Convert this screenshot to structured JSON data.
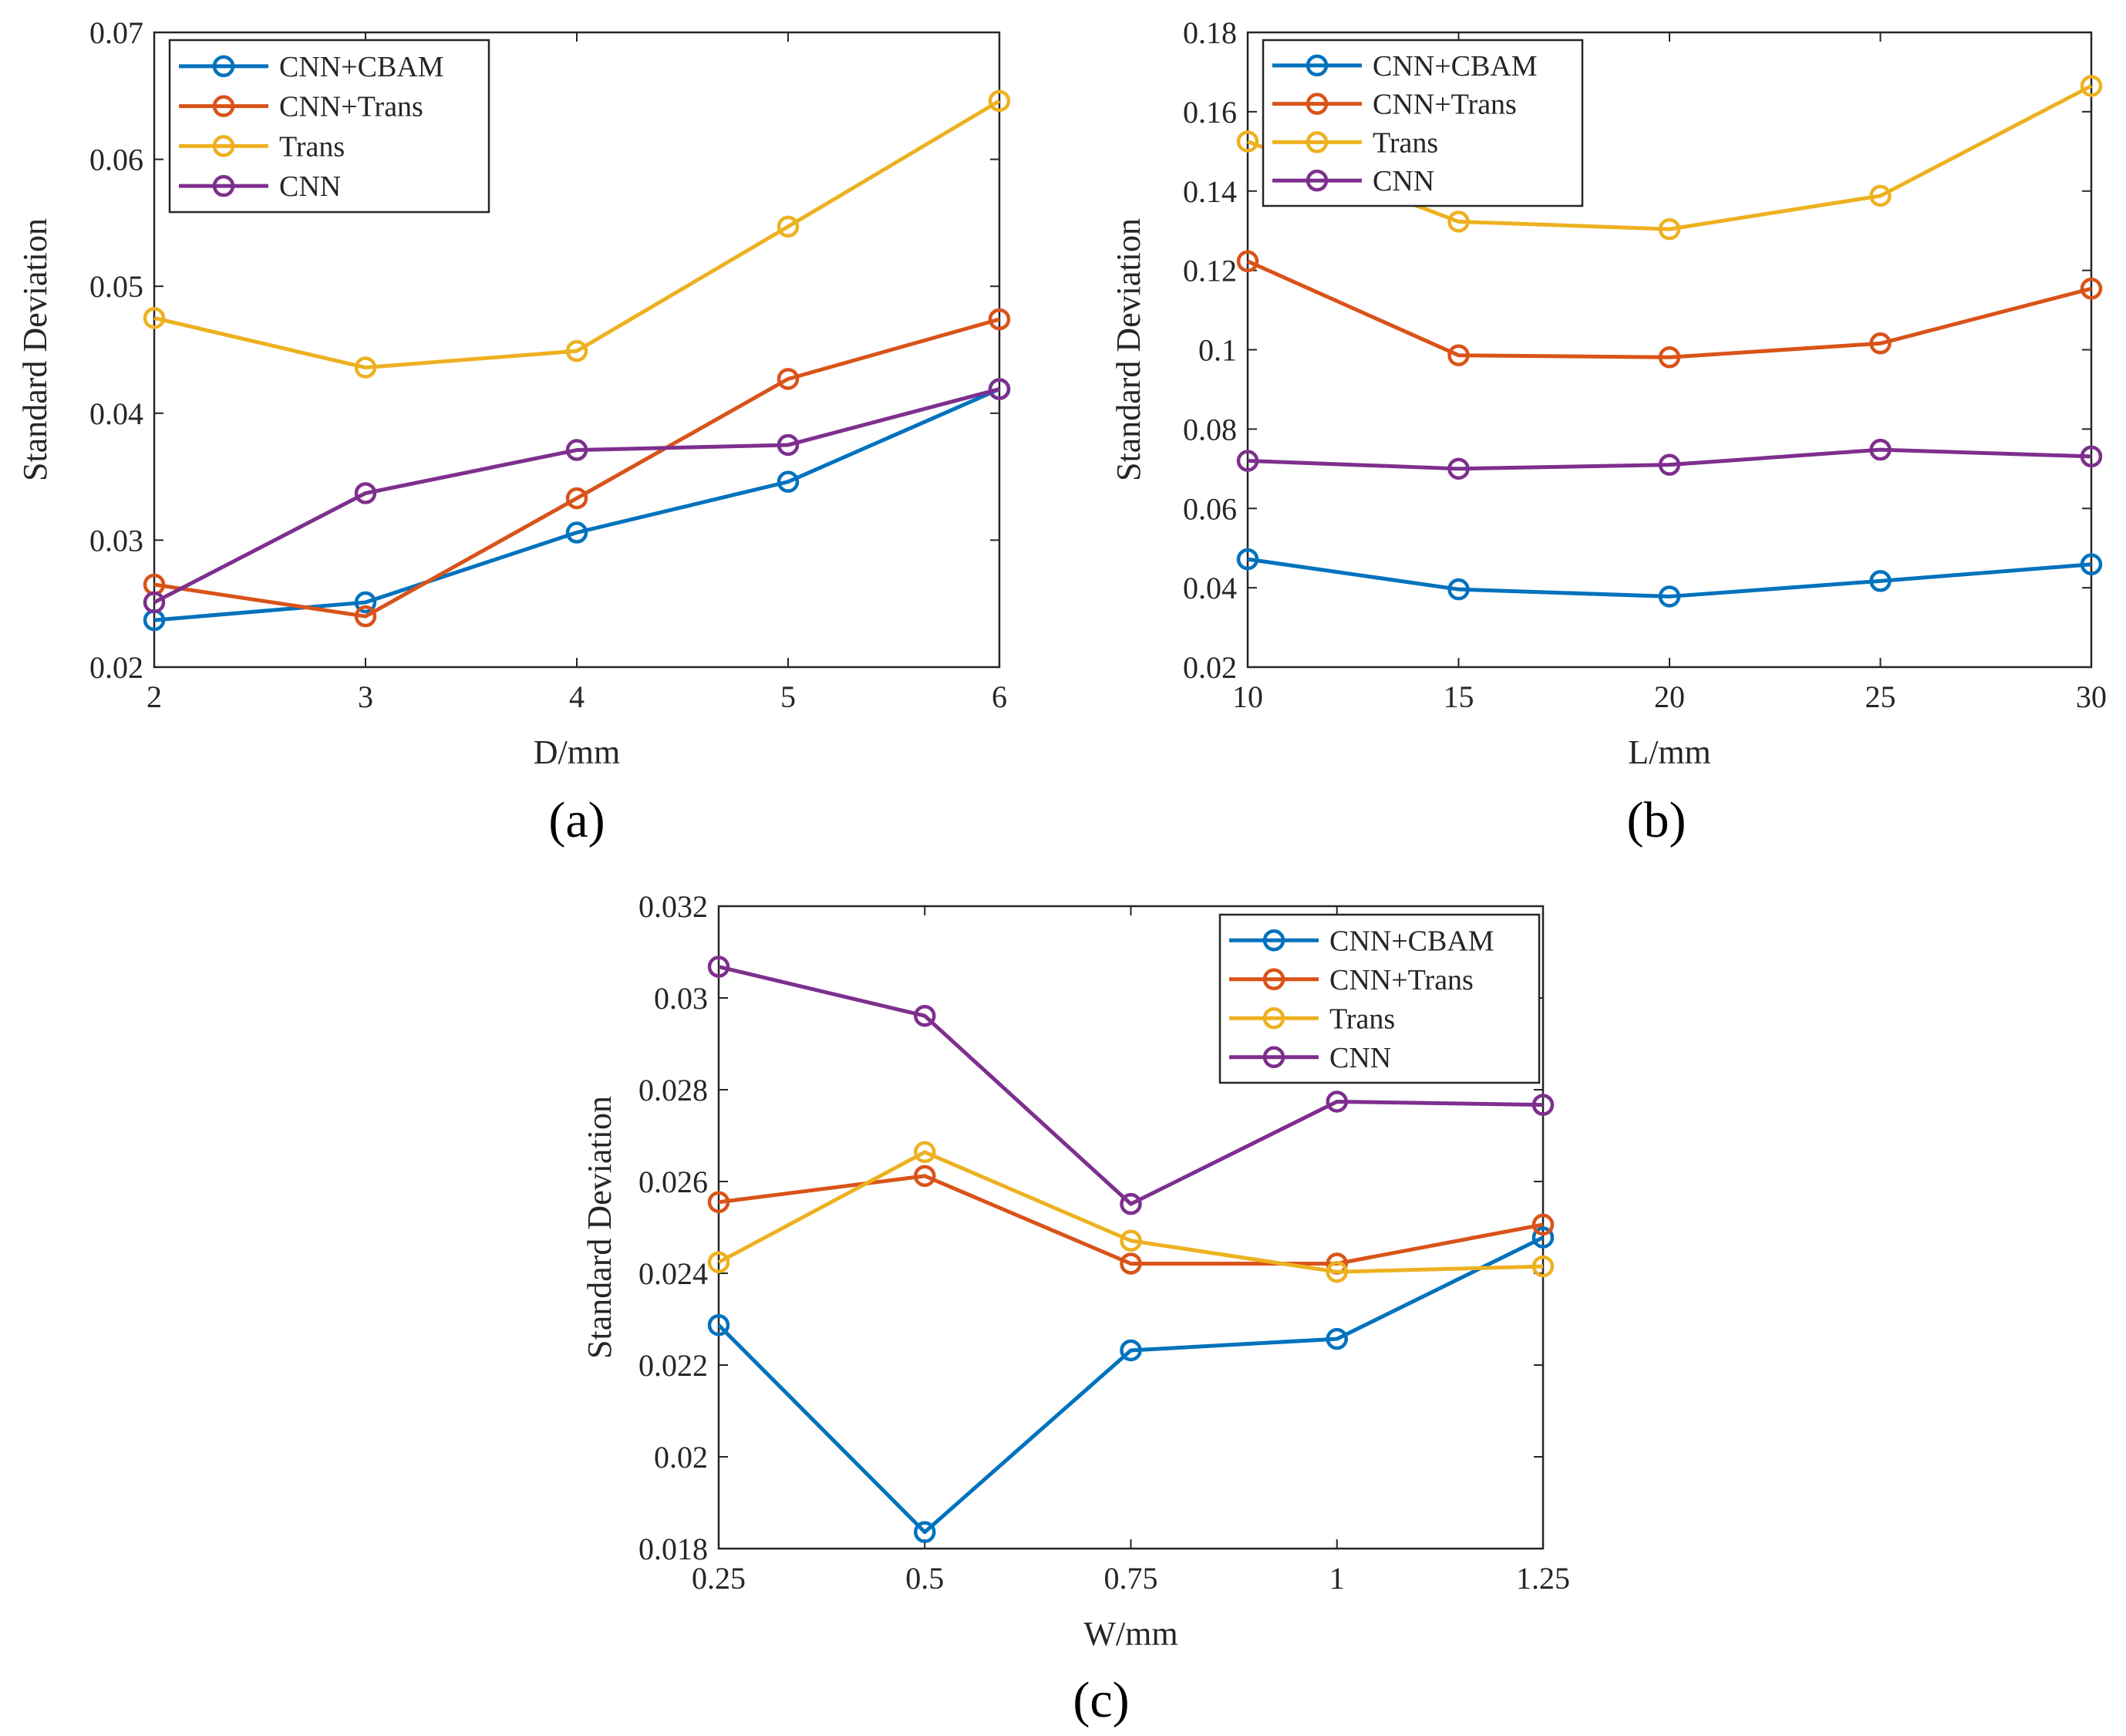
{
  "colors": {
    "cnn_cbam": "#0072BD",
    "cnn_trans": "#D95319",
    "trans": "#EDB120",
    "cnn": "#7E2F8E"
  },
  "chart_data": [
    {
      "type": "line",
      "panel_label": "(a)",
      "xlabel": "D/mm",
      "ylabel": "Standard Deviation",
      "x": [
        2,
        3,
        4,
        5,
        6
      ],
      "x_tick_labels": [
        "2",
        "3",
        "4",
        "5",
        "6"
      ],
      "xlim": [
        2,
        6
      ],
      "ylim": [
        0.02,
        0.07
      ],
      "y_ticks": [
        0.02,
        0.03,
        0.04,
        0.05,
        0.06,
        0.07
      ],
      "y_tick_labels": [
        "0.02",
        "0.03",
        "0.04",
        "0.05",
        "0.06",
        "0.07"
      ],
      "legend_position": "top-left",
      "series": [
        {
          "name": "CNN+CBAM",
          "color_key": "cnn_cbam",
          "values": [
            0.0237,
            0.0251,
            0.0306,
            0.0346,
            0.0419
          ]
        },
        {
          "name": "CNN+Trans",
          "color_key": "cnn_trans",
          "values": [
            0.0265,
            0.024,
            0.0333,
            0.0427,
            0.0474
          ]
        },
        {
          "name": "Trans",
          "color_key": "trans",
          "values": [
            0.0475,
            0.0436,
            0.0449,
            0.0547,
            0.0646
          ]
        },
        {
          "name": "CNN",
          "color_key": "cnn",
          "values": [
            0.0251,
            0.0337,
            0.0371,
            0.0375,
            0.0419
          ]
        }
      ]
    },
    {
      "type": "line",
      "panel_label": "(b)",
      "xlabel": "L/mm",
      "ylabel": "Standard Deviation",
      "x": [
        10,
        15,
        20,
        25,
        30
      ],
      "x_tick_labels": [
        "10",
        "15",
        "20",
        "25",
        "30"
      ],
      "xlim": [
        10,
        30
      ],
      "ylim": [
        0.02,
        0.18
      ],
      "y_ticks": [
        0.02,
        0.04,
        0.06,
        0.08,
        0.1,
        0.12,
        0.14,
        0.16,
        0.18
      ],
      "y_tick_labels": [
        "0.02",
        "0.04",
        "0.06",
        "0.08",
        "0.1",
        "0.12",
        "0.14",
        "0.16",
        "0.18"
      ],
      "legend_position": "top-left",
      "series": [
        {
          "name": "CNN+CBAM",
          "color_key": "cnn_cbam",
          "values": [
            0.0472,
            0.0396,
            0.0378,
            0.0417,
            0.0459
          ]
        },
        {
          "name": "CNN+Trans",
          "color_key": "cnn_trans",
          "values": [
            0.1223,
            0.0986,
            0.0981,
            0.1016,
            0.1154
          ]
        },
        {
          "name": "Trans",
          "color_key": "trans",
          "values": [
            0.1525,
            0.1323,
            0.1304,
            0.1388,
            0.1665
          ]
        },
        {
          "name": "CNN",
          "color_key": "cnn",
          "values": [
            0.072,
            0.07,
            0.071,
            0.0748,
            0.0731
          ]
        }
      ]
    },
    {
      "type": "line",
      "panel_label": "(c)",
      "xlabel": "W/mm",
      "ylabel": "Standard Deviation",
      "x": [
        0.25,
        0.5,
        0.75,
        1,
        1.25
      ],
      "x_tick_labels": [
        "0.25",
        "0.5",
        "0.75",
        "1",
        "1.25"
      ],
      "xlim": [
        0.25,
        1.25
      ],
      "ylim": [
        0.018,
        0.032
      ],
      "y_ticks": [
        0.018,
        0.02,
        0.022,
        0.024,
        0.026,
        0.028,
        0.03,
        0.032
      ],
      "y_tick_labels": [
        "0.018",
        "0.02",
        "0.022",
        "0.024",
        "0.026",
        "0.028",
        "0.03",
        "0.032"
      ],
      "legend_position": "top-right",
      "series": [
        {
          "name": "CNN+CBAM",
          "color_key": "cnn_cbam",
          "values": [
            0.02287,
            0.01836,
            0.02232,
            0.02257,
            0.02478
          ]
        },
        {
          "name": "CNN+Trans",
          "color_key": "cnn_trans",
          "values": [
            0.02555,
            0.02612,
            0.02421,
            0.02421,
            0.02506
          ]
        },
        {
          "name": "Trans",
          "color_key": "trans",
          "values": [
            0.02424,
            0.02664,
            0.02471,
            0.02403,
            0.02415
          ]
        },
        {
          "name": "CNN",
          "color_key": "cnn",
          "values": [
            0.03068,
            0.02961,
            0.02551,
            0.02774,
            0.02767
          ]
        }
      ]
    }
  ]
}
